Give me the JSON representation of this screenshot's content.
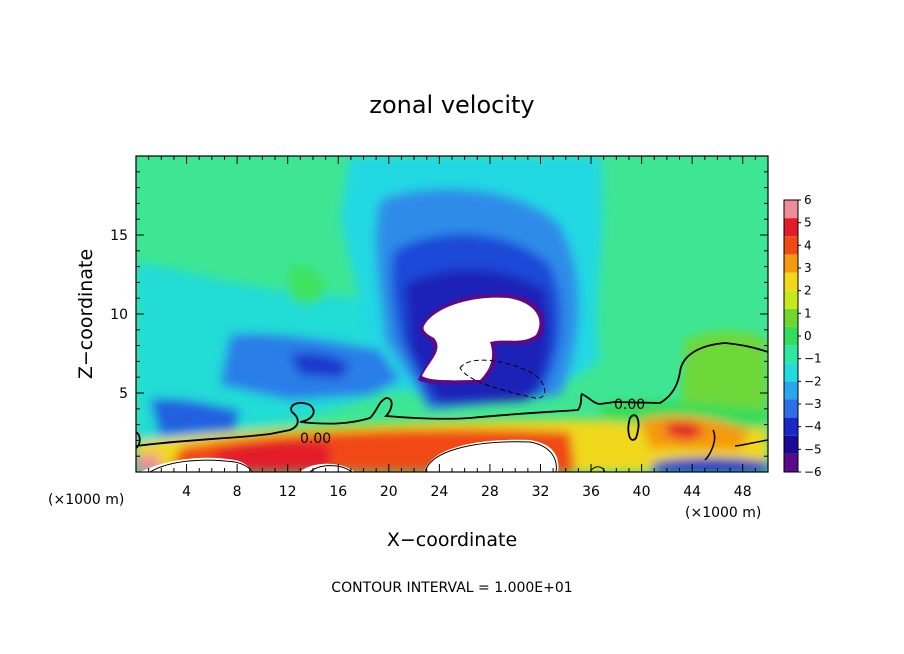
{
  "chart_data": {
    "type": "heatmap",
    "title": "zonal velocity",
    "xlabel": "X−coordinate",
    "ylabel": "Z−coordinate",
    "x_units_left": "(×1000 m)",
    "x_units_right": "(×1000 m)",
    "footer": "CONTOUR INTERVAL = 1.000E+01",
    "xlim": [
      0,
      50
    ],
    "ylim": [
      0,
      20
    ],
    "x_ticks": [
      4,
      8,
      12,
      16,
      20,
      24,
      28,
      32,
      36,
      40,
      44,
      48
    ],
    "x_tick_labels": [
      "4",
      "8",
      "12",
      "16",
      "20",
      "24",
      "28",
      "32",
      "36",
      "40",
      "44",
      "48"
    ],
    "y_ticks": [
      5,
      10,
      15
    ],
    "y_tick_labels": [
      "5",
      "10",
      "15"
    ],
    "contour_labels": [
      "0.00",
      "0.00"
    ],
    "colorbar": {
      "min": -6,
      "max": 6,
      "ticks": [
        6,
        5,
        4,
        3,
        2,
        1,
        0,
        -1,
        -2,
        -3,
        -4,
        -5,
        -6
      ],
      "tick_labels": [
        "6",
        "5",
        "4",
        "3",
        "2",
        "1",
        "0",
        "−1",
        "−2",
        "−3",
        "−4",
        "−5",
        "−6"
      ],
      "colors": [
        "#5a0a8a",
        "#1a0a96",
        "#1a28c8",
        "#2f6ee6",
        "#2aa6ee",
        "#22dcdc",
        "#2ee8a2",
        "#34dc5c",
        "#6ed82e",
        "#c8e81e",
        "#f0d81a",
        "#f59a10",
        "#f04a16",
        "#e31a2a",
        "#f08c98"
      ]
    }
  }
}
